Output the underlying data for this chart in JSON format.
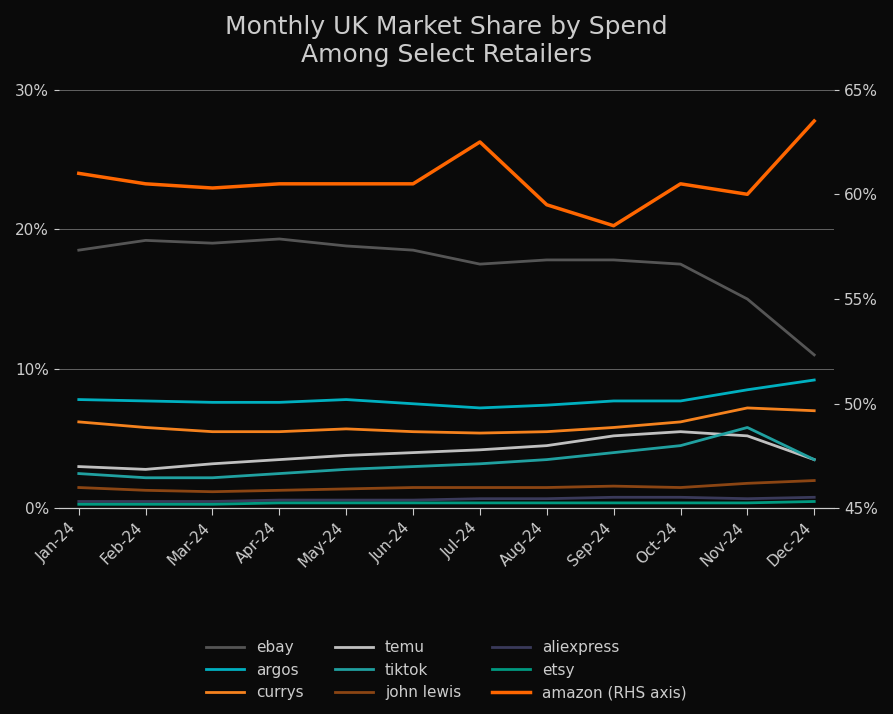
{
  "title": "Monthly UK Market Share by Spend\nAmong Select Retailers",
  "months": [
    "Jan-24",
    "Feb-24",
    "Mar-24",
    "Apr-24",
    "May-24",
    "Jun-24",
    "Jul-24",
    "Aug-24",
    "Sep-24",
    "Oct-24",
    "Nov-24",
    "Dec-24"
  ],
  "series": {
    "ebay": {
      "color": "#555555",
      "values": [
        18.5,
        19.2,
        19.0,
        19.3,
        18.8,
        18.5,
        17.5,
        17.8,
        17.8,
        17.5,
        15.0,
        11.0
      ]
    },
    "argos": {
      "color": "#00b0c0",
      "values": [
        7.8,
        7.7,
        7.6,
        7.6,
        7.8,
        7.5,
        7.2,
        7.4,
        7.7,
        7.7,
        8.5,
        9.2
      ]
    },
    "currys": {
      "color": "#f5821e",
      "values": [
        6.2,
        5.8,
        5.5,
        5.5,
        5.7,
        5.5,
        5.4,
        5.5,
        5.8,
        6.2,
        7.2,
        7.0
      ]
    },
    "temu": {
      "color": "#c0c0c0",
      "values": [
        3.0,
        2.8,
        3.2,
        3.5,
        3.8,
        4.0,
        4.2,
        4.5,
        5.2,
        5.5,
        5.2,
        3.5
      ]
    },
    "tiktok": {
      "color": "#20a0a0",
      "values": [
        2.5,
        2.2,
        2.2,
        2.5,
        2.8,
        3.0,
        3.2,
        3.5,
        4.0,
        4.5,
        5.8,
        3.5
      ]
    },
    "john_lewis": {
      "color": "#8B4513",
      "values": [
        1.5,
        1.3,
        1.2,
        1.3,
        1.4,
        1.5,
        1.5,
        1.5,
        1.6,
        1.5,
        1.8,
        2.0
      ]
    },
    "aliexpress": {
      "color": "#3a3a5a",
      "values": [
        0.5,
        0.5,
        0.5,
        0.6,
        0.6,
        0.6,
        0.7,
        0.7,
        0.8,
        0.8,
        0.7,
        0.8
      ]
    },
    "etsy": {
      "color": "#009980",
      "values": [
        0.3,
        0.3,
        0.3,
        0.4,
        0.4,
        0.4,
        0.4,
        0.4,
        0.4,
        0.4,
        0.4,
        0.5
      ]
    },
    "amazon": {
      "color": "#ff6600",
      "values": [
        61.0,
        60.5,
        60.3,
        60.5,
        60.5,
        60.5,
        62.5,
        59.5,
        58.5,
        60.5,
        60.0,
        63.5
      ]
    }
  },
  "lhs_ylim": [
    0,
    30
  ],
  "rhs_ylim": [
    45,
    65
  ],
  "lhs_yticks": [
    0,
    10,
    20,
    30
  ],
  "rhs_yticks": [
    45,
    50,
    55,
    60,
    65
  ],
  "background_color": "#0a0a0a",
  "text_color": "#cccccc",
  "grid_color": "#444444",
  "title_fontsize": 18,
  "label_fontsize": 11,
  "legend_fontsize": 11
}
